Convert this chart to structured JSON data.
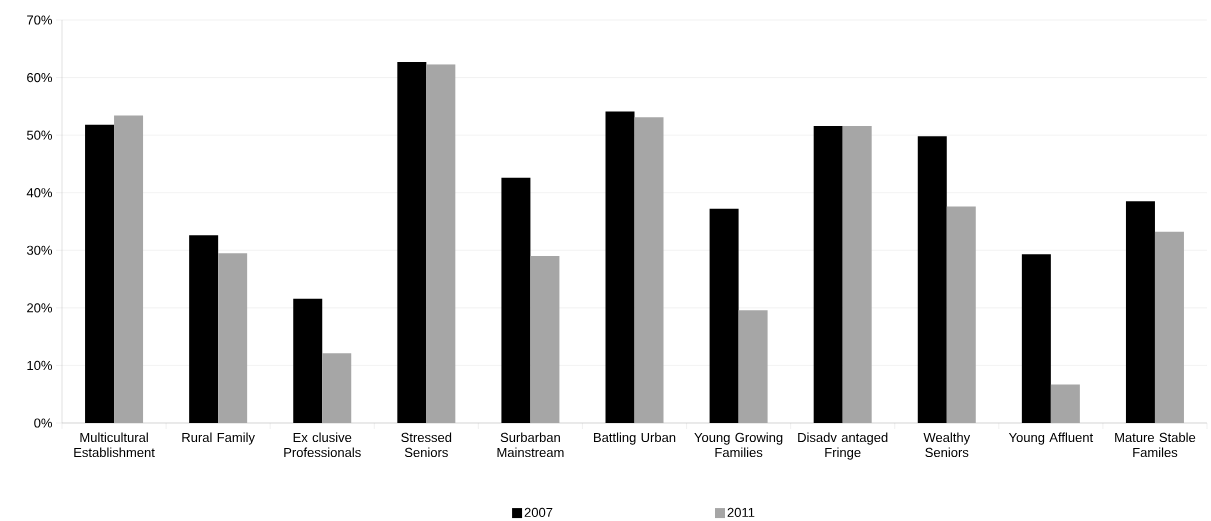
{
  "chart_data": {
    "type": "bar",
    "categories": [
      "Multicultural Establishment",
      "Rural Family",
      "Ex clusive Professionals",
      "Stressed Seniors",
      "Surbarban Mainstream",
      "Battling Urban",
      "Young Growing Families",
      "Disadv antaged Fringe",
      "Wealthy Seniors",
      "Young Affluent",
      "Mature Stable Familes"
    ],
    "series": [
      {
        "name": "2007",
        "color": "#000000",
        "values": [
          51.8,
          32.6,
          21.6,
          62.7,
          42.6,
          54.1,
          37.2,
          51.6,
          49.8,
          29.3,
          38.5
        ]
      },
      {
        "name": "2011",
        "color": "#a6a6a6",
        "values": [
          53.4,
          29.5,
          12.1,
          62.3,
          29.0,
          53.1,
          19.6,
          51.6,
          37.6,
          6.7,
          33.2
        ]
      }
    ],
    "ylim": [
      0,
      70
    ],
    "yticks": [
      {
        "value": 0,
        "label": "0%"
      },
      {
        "value": 10,
        "label": "10%"
      },
      {
        "value": 20,
        "label": "20%"
      },
      {
        "value": 30,
        "label": "30%"
      },
      {
        "value": 40,
        "label": "40%"
      },
      {
        "value": 50,
        "label": "50%"
      },
      {
        "value": 60,
        "label": "60%"
      },
      {
        "value": 70,
        "label": "70%"
      }
    ],
    "grid": "y",
    "legend": "bottom"
  }
}
